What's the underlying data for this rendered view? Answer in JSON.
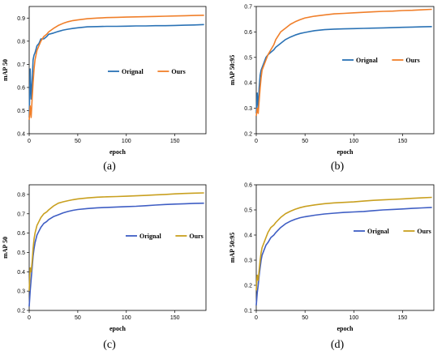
{
  "colors": {
    "a_orig": "#2a72b5",
    "a_ours": "#f07f2a",
    "b_orig": "#2a72b5",
    "b_ours": "#f07f2a",
    "c_orig": "#3f5ec4",
    "c_ours": "#c9a020",
    "d_orig": "#3f5ec4",
    "d_ours": "#c9a020"
  },
  "chart_data": [
    {
      "id": "a",
      "type": "line",
      "panel_label": "(a)",
      "xlabel": "epoch",
      "ylabel": "mAP 50",
      "xlim": [
        0,
        182
      ],
      "ylim": [
        0.4,
        0.95
      ],
      "xticks": [
        "0",
        "50",
        "100",
        "150"
      ],
      "xtick_values": [
        0,
        50,
        100,
        150
      ],
      "yticks": [
        "0.4",
        "0.5",
        "0.6",
        "0.7",
        "0.8",
        "0.9"
      ],
      "ytick_values": [
        0.4,
        0.5,
        0.6,
        0.7,
        0.8,
        0.9
      ],
      "grid": false,
      "legend": "center-right",
      "series": [
        {
          "name": "Orignal",
          "color_key": "a_orig",
          "x": [
            0,
            1,
            2,
            3,
            4,
            5,
            6,
            8,
            10,
            12,
            15,
            18,
            20,
            25,
            30,
            35,
            40,
            45,
            50,
            60,
            70,
            80,
            90,
            100,
            110,
            120,
            130,
            140,
            150,
            160,
            170,
            180
          ],
          "y": [
            0.47,
            0.68,
            0.55,
            0.62,
            0.72,
            0.74,
            0.75,
            0.78,
            0.79,
            0.81,
            0.81,
            0.82,
            0.83,
            0.835,
            0.842,
            0.848,
            0.852,
            0.855,
            0.858,
            0.862,
            0.863,
            0.864,
            0.864,
            0.865,
            0.866,
            0.866,
            0.867,
            0.867,
            0.868,
            0.869,
            0.87,
            0.872
          ]
        },
        {
          "name": "Ours",
          "color_key": "a_ours",
          "x": [
            0,
            1,
            2,
            3,
            4,
            5,
            6,
            8,
            10,
            12,
            15,
            18,
            20,
            25,
            30,
            35,
            40,
            45,
            50,
            60,
            70,
            80,
            90,
            100,
            110,
            120,
            130,
            140,
            150,
            160,
            170,
            180
          ],
          "y": [
            0.46,
            0.52,
            0.47,
            0.55,
            0.62,
            0.68,
            0.72,
            0.76,
            0.78,
            0.8,
            0.82,
            0.83,
            0.84,
            0.855,
            0.868,
            0.877,
            0.884,
            0.889,
            0.892,
            0.897,
            0.9,
            0.902,
            0.903,
            0.904,
            0.905,
            0.906,
            0.907,
            0.908,
            0.909,
            0.91,
            0.911,
            0.912
          ]
        }
      ]
    },
    {
      "id": "b",
      "type": "line",
      "panel_label": "(b)",
      "xlabel": "epoch",
      "ylabel": "mAP 50:95",
      "xlim": [
        0,
        182
      ],
      "ylim": [
        0.2,
        0.7
      ],
      "xticks": [
        "0",
        "50",
        "100",
        "150"
      ],
      "xtick_values": [
        0,
        50,
        100,
        150
      ],
      "yticks": [
        "0.2",
        "0.3",
        "0.4",
        "0.5",
        "0.6",
        "0.7"
      ],
      "ytick_values": [
        0.2,
        0.3,
        0.4,
        0.5,
        0.6,
        0.7
      ],
      "grid": false,
      "legend": "center-right",
      "series": [
        {
          "name": "Orignal",
          "color_key": "b_orig",
          "x": [
            0,
            1,
            2,
            3,
            4,
            5,
            6,
            8,
            10,
            12,
            15,
            18,
            20,
            25,
            30,
            35,
            40,
            45,
            50,
            60,
            70,
            80,
            90,
            100,
            110,
            120,
            130,
            140,
            150,
            160,
            170,
            180
          ],
          "y": [
            0.28,
            0.36,
            0.3,
            0.38,
            0.43,
            0.45,
            0.46,
            0.48,
            0.5,
            0.51,
            0.52,
            0.53,
            0.54,
            0.555,
            0.57,
            0.58,
            0.588,
            0.594,
            0.598,
            0.605,
            0.609,
            0.611,
            0.612,
            0.613,
            0.614,
            0.615,
            0.616,
            0.617,
            0.618,
            0.619,
            0.62,
            0.621
          ]
        },
        {
          "name": "Ours",
          "color_key": "b_ours",
          "x": [
            0,
            1,
            2,
            3,
            4,
            5,
            6,
            8,
            10,
            12,
            15,
            18,
            20,
            25,
            30,
            35,
            40,
            45,
            50,
            60,
            70,
            80,
            90,
            100,
            110,
            120,
            130,
            140,
            150,
            160,
            170,
            180
          ],
          "y": [
            0.27,
            0.3,
            0.28,
            0.33,
            0.38,
            0.42,
            0.45,
            0.47,
            0.49,
            0.51,
            0.53,
            0.55,
            0.57,
            0.6,
            0.615,
            0.63,
            0.64,
            0.648,
            0.655,
            0.662,
            0.667,
            0.671,
            0.673,
            0.675,
            0.677,
            0.679,
            0.681,
            0.682,
            0.684,
            0.685,
            0.687,
            0.689
          ]
        }
      ]
    },
    {
      "id": "c",
      "type": "line",
      "panel_label": "(c)",
      "xlabel": "epoch",
      "ylabel": "mAP 50",
      "xlim": [
        0,
        182
      ],
      "ylim": [
        0.2,
        0.85
      ],
      "xticks": [
        "0",
        "50",
        "100",
        "150"
      ],
      "xtick_values": [
        0,
        50,
        100,
        150
      ],
      "yticks": [
        "0.2",
        "0.3",
        "0.4",
        "0.5",
        "0.6",
        "0.7",
        "0.8"
      ],
      "ytick_values": [
        0.2,
        0.3,
        0.4,
        0.5,
        0.6,
        0.7,
        0.8
      ],
      "grid": false,
      "legend": "center-right",
      "series": [
        {
          "name": "Orignal",
          "color_key": "c_orig",
          "x": [
            0,
            1,
            2,
            3,
            4,
            5,
            6,
            8,
            10,
            12,
            15,
            18,
            20,
            25,
            30,
            35,
            40,
            45,
            50,
            60,
            70,
            80,
            90,
            100,
            110,
            120,
            130,
            140,
            150,
            160,
            170,
            180
          ],
          "y": [
            0.22,
            0.3,
            0.36,
            0.42,
            0.48,
            0.52,
            0.55,
            0.59,
            0.61,
            0.63,
            0.65,
            0.66,
            0.67,
            0.685,
            0.695,
            0.705,
            0.712,
            0.718,
            0.722,
            0.727,
            0.731,
            0.733,
            0.735,
            0.737,
            0.739,
            0.742,
            0.745,
            0.748,
            0.75,
            0.752,
            0.754,
            0.755
          ]
        },
        {
          "name": "Ours",
          "color_key": "c_ours",
          "x": [
            0,
            1,
            2,
            3,
            4,
            5,
            6,
            8,
            10,
            12,
            15,
            18,
            20,
            25,
            30,
            35,
            40,
            45,
            50,
            60,
            70,
            80,
            90,
            100,
            110,
            120,
            130,
            140,
            150,
            160,
            170,
            180
          ],
          "y": [
            0.3,
            0.42,
            0.4,
            0.45,
            0.52,
            0.57,
            0.6,
            0.64,
            0.66,
            0.68,
            0.7,
            0.71,
            0.72,
            0.74,
            0.755,
            0.762,
            0.768,
            0.773,
            0.777,
            0.782,
            0.786,
            0.788,
            0.789,
            0.791,
            0.793,
            0.795,
            0.798,
            0.8,
            0.803,
            0.805,
            0.807,
            0.808
          ]
        }
      ]
    },
    {
      "id": "d",
      "type": "line",
      "panel_label": "(d)",
      "xlabel": "epoch",
      "ylabel": "mAP 50:95",
      "xlim": [
        0,
        182
      ],
      "ylim": [
        0.1,
        0.6
      ],
      "xticks": [
        "0",
        "50",
        "100",
        "150"
      ],
      "xtick_values": [
        0,
        50,
        100,
        150
      ],
      "yticks": [
        "0.1",
        "0.2",
        "0.3",
        "0.4",
        "0.5",
        "0.6"
      ],
      "ytick_values": [
        0.1,
        0.2,
        0.3,
        0.4,
        0.5,
        0.6
      ],
      "grid": false,
      "legend": "center-right",
      "series": [
        {
          "name": "Orignal",
          "color_key": "d_orig",
          "x": [
            0,
            1,
            2,
            3,
            4,
            5,
            6,
            8,
            10,
            12,
            15,
            18,
            20,
            25,
            30,
            35,
            40,
            45,
            50,
            60,
            70,
            80,
            90,
            100,
            110,
            120,
            130,
            140,
            150,
            160,
            170,
            180
          ],
          "y": [
            0.12,
            0.17,
            0.2,
            0.24,
            0.27,
            0.3,
            0.32,
            0.34,
            0.36,
            0.37,
            0.39,
            0.4,
            0.41,
            0.43,
            0.445,
            0.455,
            0.463,
            0.469,
            0.473,
            0.479,
            0.484,
            0.487,
            0.49,
            0.492,
            0.494,
            0.497,
            0.5,
            0.502,
            0.504,
            0.506,
            0.508,
            0.51
          ]
        },
        {
          "name": "Ours",
          "color_key": "d_ours",
          "x": [
            0,
            1,
            2,
            3,
            4,
            5,
            6,
            8,
            10,
            12,
            15,
            18,
            20,
            25,
            30,
            35,
            40,
            45,
            50,
            60,
            70,
            80,
            90,
            100,
            110,
            120,
            130,
            140,
            150,
            160,
            170,
            180
          ],
          "y": [
            0.18,
            0.24,
            0.22,
            0.26,
            0.3,
            0.33,
            0.35,
            0.37,
            0.39,
            0.41,
            0.43,
            0.44,
            0.45,
            0.47,
            0.485,
            0.495,
            0.503,
            0.509,
            0.514,
            0.52,
            0.525,
            0.528,
            0.53,
            0.532,
            0.535,
            0.538,
            0.54,
            0.542,
            0.544,
            0.546,
            0.548,
            0.55
          ]
        }
      ]
    }
  ]
}
